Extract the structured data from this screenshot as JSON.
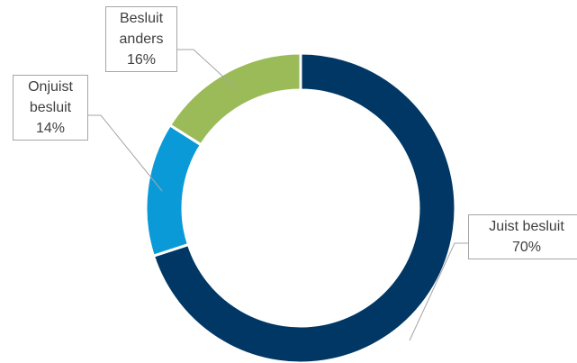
{
  "chart_data": {
    "type": "donut",
    "categories": [
      "Juist besluit",
      "Onjuist besluit",
      "Besluit anders"
    ],
    "values": [
      70,
      14,
      16
    ],
    "value_labels": [
      "70%",
      "14%",
      "16%"
    ],
    "colors": [
      "#003764",
      "#0a9ad8",
      "#9bbb59"
    ]
  }
}
